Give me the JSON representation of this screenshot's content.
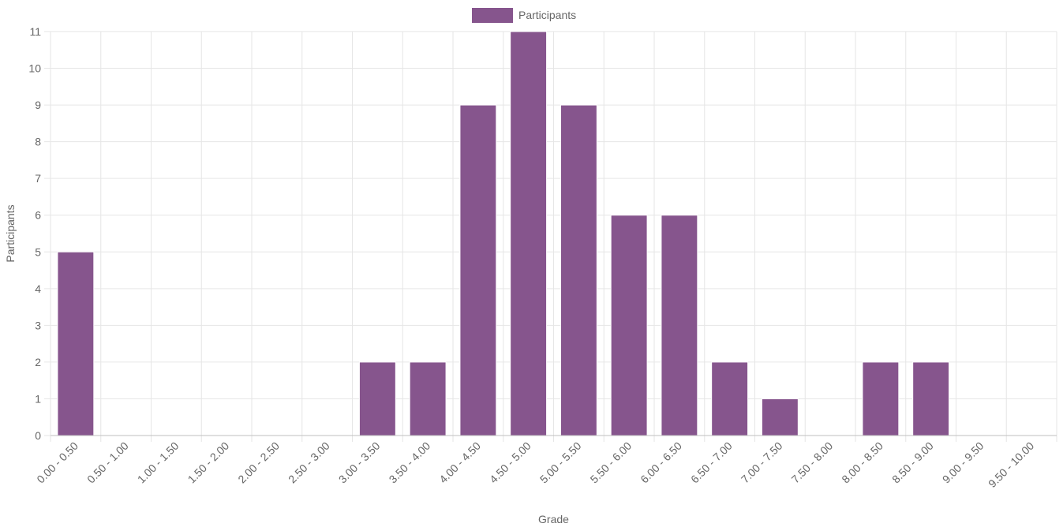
{
  "chart_data": {
    "type": "bar",
    "xlabel": "Grade",
    "ylabel": "Participants",
    "ylim": [
      0,
      11
    ],
    "yticks": [
      0,
      1,
      2,
      3,
      4,
      5,
      6,
      7,
      8,
      9,
      10,
      11
    ],
    "grid": true,
    "legend_position": "top-center",
    "categories": [
      "0.00 - 0.50",
      "0.50 - 1.00",
      "1.00 - 1.50",
      "1.50 - 2.00",
      "2.00 - 2.50",
      "2.50 - 3.00",
      "3.00 - 3.50",
      "3.50 - 4.00",
      "4.00 - 4.50",
      "4.50 - 5.00",
      "5.00 - 5.50",
      "5.50 - 6.00",
      "6.00 - 6.50",
      "6.50 - 7.00",
      "7.00 - 7.50",
      "7.50 - 8.00",
      "8.00 - 8.50",
      "8.50 - 9.00",
      "9.00 - 9.50",
      "9.50 - 10.00"
    ],
    "series": [
      {
        "name": "Participants",
        "color": "#86558d",
        "values": [
          5,
          0,
          0,
          0,
          0,
          0,
          2,
          2,
          9,
          11,
          9,
          6,
          6,
          2,
          1,
          0,
          2,
          2,
          0,
          0
        ]
      }
    ]
  }
}
